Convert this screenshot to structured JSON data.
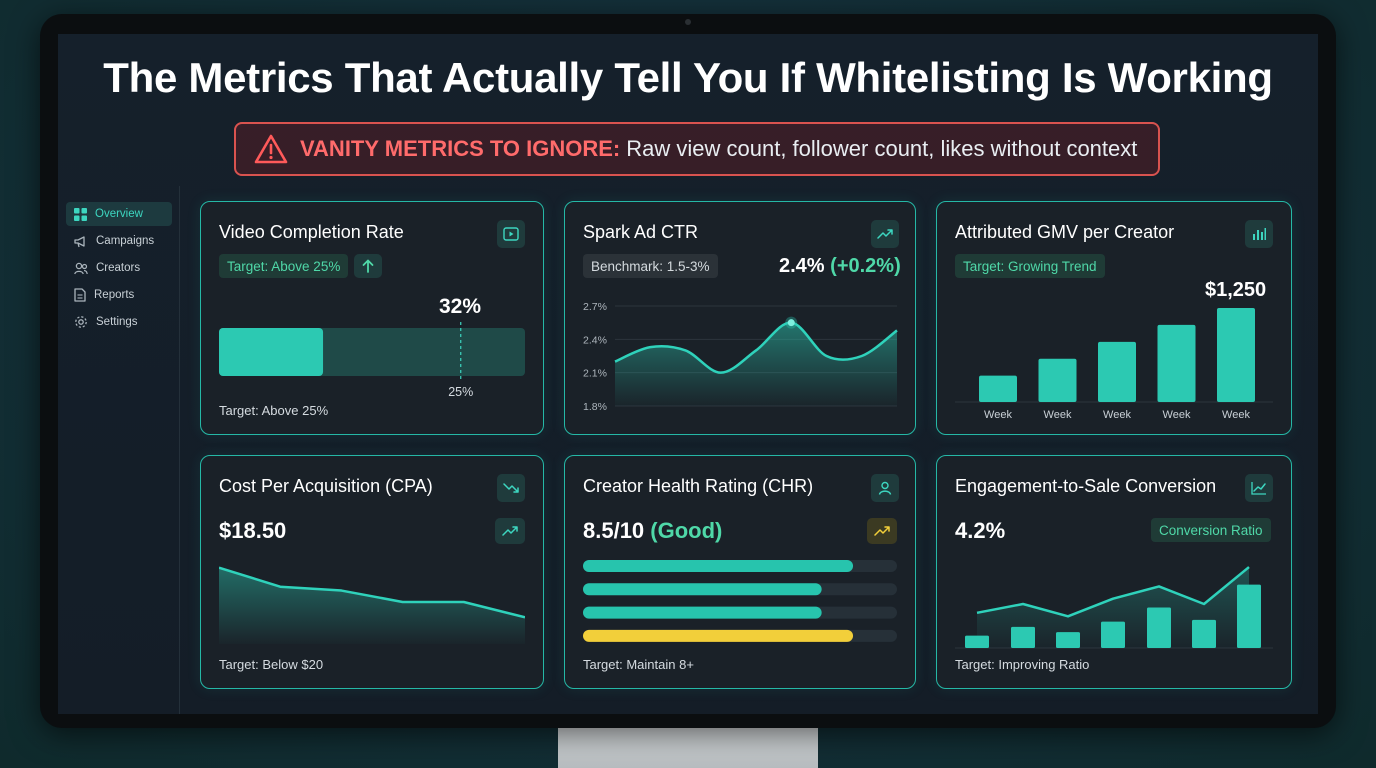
{
  "title": "The Metrics That Actually Tell You If Whitelisting Is Working",
  "alert": {
    "lead": "VANITY METRICS TO IGNORE:",
    "text": "Raw view count, follower count, likes without context",
    "icon": "warning-triangle-icon"
  },
  "sidebar": {
    "items": [
      {
        "label": "Overview",
        "icon": "grid-icon",
        "active": true
      },
      {
        "label": "Campaigns",
        "icon": "megaphone-icon",
        "active": false
      },
      {
        "label": "Creators",
        "icon": "users-icon",
        "active": false
      },
      {
        "label": "Reports",
        "icon": "document-icon",
        "active": false
      },
      {
        "label": "Settings",
        "icon": "gear-icon",
        "active": false
      }
    ]
  },
  "cards": {
    "completion": {
      "title": "Video Completion Rate",
      "pill": "Target: Above 25%",
      "value": "32%",
      "marker_label": "25%",
      "footer": "Target: Above 25%",
      "progress": 0.34,
      "marker": 0.79,
      "icon": "play-icon"
    },
    "ctr": {
      "title": "Spark Ad CTR",
      "pill": "Benchmark: 1.5-3%",
      "value": "2.4%",
      "delta": "(+0.2%)",
      "icon": "trend-up-icon"
    },
    "gmv": {
      "title": "Attributed GMV per Creator",
      "pill": "Target: Growing Trend",
      "value": "$1,250",
      "icon": "bar-chart-icon"
    },
    "cpa": {
      "title": "Cost Per Acquisition (CPA)",
      "value": "$18.50",
      "footer": "Target: Below $20",
      "icon": "trend-down-icon"
    },
    "chr": {
      "title": "Creator Health Rating (CHR)",
      "value": "8.5/10",
      "status": "(Good)",
      "footer": "Target: Maintain 8+",
      "bars": [
        0.86,
        0.76,
        0.76,
        0.86
      ],
      "bar_colors": [
        "#27c4ad",
        "#27c4ad",
        "#27c4ad",
        "#f2cf3a"
      ],
      "icon": "user-icon"
    },
    "conversion": {
      "title": "Engagement-to-Sale Conversion",
      "value": "4.2%",
      "pill": "Conversion Ratio",
      "footer": "Target: Improving Ratio",
      "icon": "line-chart-icon"
    }
  },
  "chart_data": [
    {
      "type": "line",
      "y_ticks": [
        "2.7%",
        "2.4%",
        "2.1%",
        "1.8%"
      ],
      "ylim": [
        1.8,
        2.7
      ],
      "x": [
        0,
        1,
        2,
        3,
        4,
        5,
        6,
        7,
        8
      ],
      "values": [
        2.2,
        2.33,
        2.3,
        2.1,
        2.3,
        2.55,
        2.25,
        2.25,
        2.48
      ],
      "highlight_index": 5
    },
    {
      "type": "bar",
      "categories": [
        "Week",
        "Week",
        "Week",
        "Week",
        "Week"
      ],
      "values": [
        28,
        46,
        64,
        82,
        100
      ],
      "ylim": [
        0,
        100
      ]
    },
    {
      "type": "area",
      "values": [
        20,
        15,
        14,
        11,
        11,
        7
      ],
      "ylim": [
        0,
        22
      ]
    },
    {
      "type": "bar",
      "bar_values": [
        14,
        24,
        18,
        30,
        46,
        32,
        72
      ],
      "line_values": [
        40,
        50,
        36,
        56,
        70,
        50,
        92
      ],
      "ylim": [
        0,
        100
      ]
    }
  ]
}
